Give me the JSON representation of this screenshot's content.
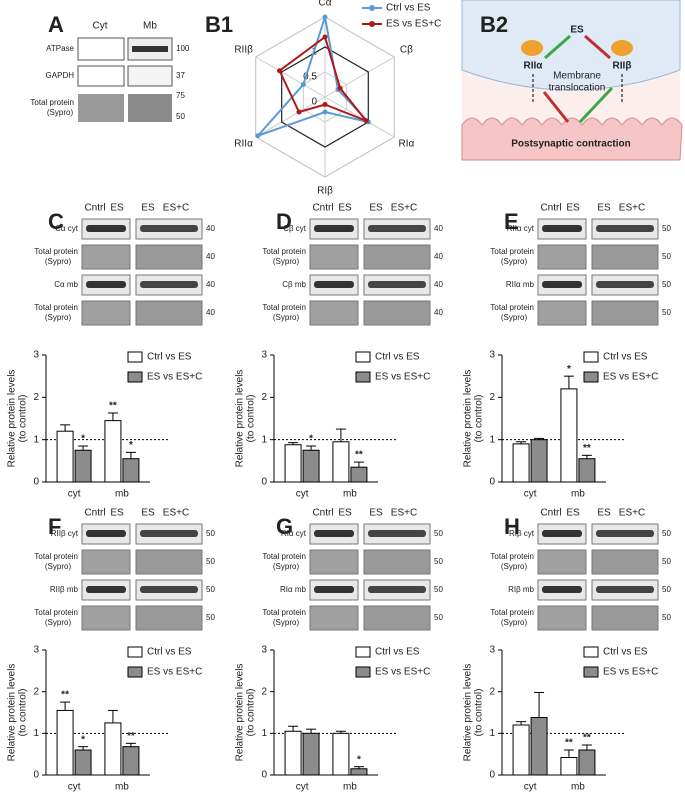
{
  "figure": {
    "A": {
      "letter": "A",
      "columns": [
        "Cyt",
        "Mb"
      ],
      "rows": [
        {
          "label": "ATPase",
          "marker": "100"
        },
        {
          "label": "GAPDH",
          "marker": "37"
        },
        {
          "label": "Total protein",
          "sublabel": "(Sypro)",
          "marker": "75",
          "marker2": "50"
        }
      ]
    },
    "B1": {
      "letter": "B1"
    },
    "B2": {
      "letter": "B2",
      "stimulus": "ES",
      "left": "RIIα",
      "right": "RIIβ",
      "middle": "Membrane",
      "middle2": "translocation",
      "bottom": "Postsynaptic contraction"
    },
    "blots": [
      {
        "letter": "C",
        "columns": [
          "Cntrl",
          "ES",
          "ES",
          "ES+C"
        ],
        "rows": [
          {
            "label": "Cα cyt",
            "marker": "40"
          },
          {
            "label": "Total protein",
            "sublabel": "(Sypro)",
            "marker": "40"
          },
          {
            "label": "Cα mb",
            "marker": "40"
          },
          {
            "label": "Total protein",
            "sublabel": "(Sypro)",
            "marker": "40"
          }
        ]
      },
      {
        "letter": "D",
        "columns": [
          "Cntrl",
          "ES",
          "ES",
          "ES+C"
        ],
        "rows": [
          {
            "label": "Cβ cyt",
            "marker": "40"
          },
          {
            "label": "Total protein",
            "sublabel": "(Sypro)",
            "marker": "40"
          },
          {
            "label": "Cβ mb",
            "marker": "40"
          },
          {
            "label": "Total protein",
            "sublabel": "(Sypro)",
            "marker": "40"
          }
        ]
      },
      {
        "letter": "E",
        "columns": [
          "Cntrl",
          "ES",
          "ES",
          "ES+C"
        ],
        "rows": [
          {
            "label": "RIIα cyt",
            "marker": "50"
          },
          {
            "label": "Total protein",
            "sublabel": "(Sypro)",
            "marker": "50"
          },
          {
            "label": "RIIα mb",
            "marker": "50"
          },
          {
            "label": "Total protein",
            "sublabel": "(Sypro)",
            "marker": "50"
          }
        ]
      },
      {
        "letter": "F",
        "columns": [
          "Cntrl",
          "ES",
          "ES",
          "ES+C"
        ],
        "rows": [
          {
            "label": "RIIβ cyt",
            "marker": "50"
          },
          {
            "label": "Total protein",
            "sublabel": "(Sypro)",
            "marker": "50"
          },
          {
            "label": "RIIβ mb",
            "marker": "50"
          },
          {
            "label": "Total protein",
            "sublabel": "(Sypro)",
            "marker": "50"
          }
        ]
      },
      {
        "letter": "G",
        "columns": [
          "Cntrl",
          "ES",
          "ES",
          "ES+C"
        ],
        "rows": [
          {
            "label": "RIα cyt",
            "marker": "50"
          },
          {
            "label": "Total protein",
            "sublabel": "(Sypro)",
            "marker": "50"
          },
          {
            "label": "RIα mb",
            "marker": "50"
          },
          {
            "label": "Total protein",
            "sublabel": "(Sypro)",
            "marker": "50"
          }
        ]
      },
      {
        "letter": "H",
        "columns": [
          "Cntrl",
          "ES",
          "ES",
          "ES+C"
        ],
        "rows": [
          {
            "label": "RIβ cyt",
            "marker": "50"
          },
          {
            "label": "Total protein",
            "sublabel": "(Sypro)",
            "marker": "50"
          },
          {
            "label": "RIβ mb",
            "marker": "50"
          },
          {
            "label": "Total protein",
            "sublabel": "(Sypro)",
            "marker": "50"
          }
        ]
      }
    ]
  },
  "chart_data": [
    {
      "type": "radar",
      "axes": [
        "Cα",
        "Cβ",
        "RIα",
        "RIβ",
        "RIIα",
        "RIIβ"
      ],
      "rlim": [
        0,
        1.6
      ],
      "rticks": [
        0,
        0.5,
        1
      ],
      "series": [
        {
          "name": "Ctrl vs ES",
          "color": "#5b9bd5",
          "values": [
            1.6,
            0.3,
            1.0,
            0.3,
            1.55,
            0.5
          ]
        },
        {
          "name": "ES vs ES+C",
          "color": "#b01818",
          "values": [
            1.2,
            0.35,
            0.95,
            0.15,
            0.6,
            1.05
          ]
        }
      ]
    },
    {
      "type": "bar",
      "categories": [
        "cyt",
        "mb"
      ],
      "ylim": [
        0,
        3
      ],
      "yticks": [
        0,
        1,
        2,
        3
      ],
      "y_label": "Relative protein levels",
      "y_label_2": "(to control)",
      "reference_line": 1,
      "series": [
        {
          "name": "Ctrl vs ES",
          "color": "#ffffff",
          "values": [
            1.2,
            1.45
          ],
          "errors": [
            0.15,
            0.18
          ],
          "stars": [
            null,
            "**"
          ]
        },
        {
          "name": "ES vs ES+C",
          "color": "#8c8c8c",
          "values": [
            0.75,
            0.55
          ],
          "errors": [
            0.1,
            0.15
          ],
          "stars": [
            "*",
            "*"
          ]
        }
      ]
    },
    {
      "type": "bar",
      "categories": [
        "cyt",
        "mb"
      ],
      "ylim": [
        0,
        3
      ],
      "yticks": [
        0,
        1,
        2,
        3
      ],
      "y_label": "Relative protein levels",
      "y_label_2": "(to control)",
      "reference_line": 1,
      "series": [
        {
          "name": "Ctrl vs ES",
          "color": "#ffffff",
          "values": [
            0.88,
            0.95
          ],
          "errors": [
            0.05,
            0.3
          ],
          "stars": [
            null,
            null
          ]
        },
        {
          "name": "ES vs ES+C",
          "color": "#8c8c8c",
          "values": [
            0.75,
            0.35
          ],
          "errors": [
            0.1,
            0.12
          ],
          "stars": [
            "*",
            "**"
          ]
        }
      ]
    },
    {
      "type": "bar",
      "categories": [
        "cyt",
        "mb"
      ],
      "ylim": [
        0,
        3
      ],
      "yticks": [
        0,
        1,
        2,
        3
      ],
      "y_label": "Relative protein levels",
      "y_label_2": "(to control)",
      "reference_line": 1,
      "series": [
        {
          "name": "Ctrl vs ES",
          "color": "#ffffff",
          "values": [
            0.9,
            2.2
          ],
          "errors": [
            0.05,
            0.3
          ],
          "stars": [
            null,
            "*"
          ]
        },
        {
          "name": "ES vs ES+C",
          "color": "#8c8c8c",
          "values": [
            1.0,
            0.55
          ],
          "errors": [
            0.03,
            0.08
          ],
          "stars": [
            null,
            "**"
          ]
        }
      ]
    },
    {
      "type": "bar",
      "categories": [
        "cyt",
        "mb"
      ],
      "ylim": [
        0,
        3
      ],
      "yticks": [
        0,
        1,
        2,
        3
      ],
      "y_label": "Relative protein levels",
      "y_label_2": "(to control)",
      "reference_line": 1,
      "series": [
        {
          "name": "Ctrl vs ES",
          "color": "#ffffff",
          "values": [
            1.55,
            1.25
          ],
          "errors": [
            0.2,
            0.3
          ],
          "stars": [
            "**",
            null
          ]
        },
        {
          "name": "ES vs ES+C",
          "color": "#8c8c8c",
          "values": [
            0.6,
            0.68
          ],
          "errors": [
            0.08,
            0.08
          ],
          "stars": [
            "*",
            "**"
          ]
        }
      ]
    },
    {
      "type": "bar",
      "categories": [
        "cyt",
        "mb"
      ],
      "ylim": [
        0,
        3
      ],
      "yticks": [
        0,
        1,
        2,
        3
      ],
      "y_label": "Relative protein levels",
      "y_label_2": "(to control)",
      "reference_line": 1,
      "series": [
        {
          "name": "Ctrl vs ES",
          "color": "#ffffff",
          "values": [
            1.05,
            1.0
          ],
          "errors": [
            0.12,
            0.05
          ],
          "stars": [
            null,
            null
          ]
        },
        {
          "name": "ES vs ES+C",
          "color": "#8c8c8c",
          "values": [
            1.0,
            0.15
          ],
          "errors": [
            0.1,
            0.05
          ],
          "stars": [
            null,
            "*"
          ]
        }
      ]
    },
    {
      "type": "bar",
      "categories": [
        "cyt",
        "mb"
      ],
      "ylim": [
        0,
        3
      ],
      "yticks": [
        0,
        1,
        2,
        3
      ],
      "y_label": "Relative protein levels",
      "y_label_2": "(to control)",
      "reference_line": 1,
      "series": [
        {
          "name": "Ctrl vs ES",
          "color": "#ffffff",
          "values": [
            1.2,
            0.42
          ],
          "errors": [
            0.08,
            0.18
          ],
          "stars": [
            null,
            "**"
          ]
        },
        {
          "name": "ES vs ES+C",
          "color": "#8c8c8c",
          "values": [
            1.38,
            0.6
          ],
          "errors": [
            0.6,
            0.12
          ],
          "stars": [
            null,
            "**"
          ]
        }
      ]
    }
  ]
}
